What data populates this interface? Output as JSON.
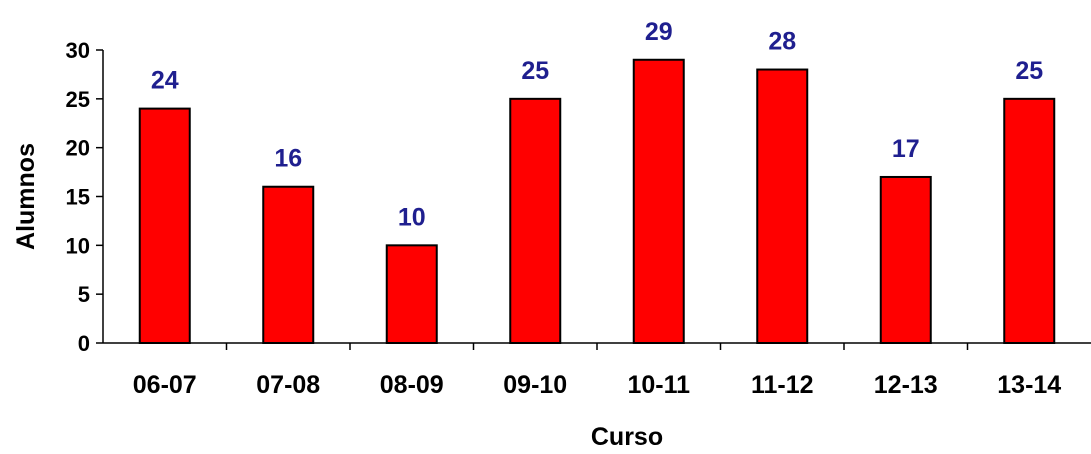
{
  "chart_data": {
    "type": "bar",
    "title": "",
    "xlabel": "Curso",
    "ylabel": "Alumnos",
    "categories": [
      "06-07",
      "07-08",
      "08-09",
      "09-10",
      "10-11",
      "11-12",
      "12-13",
      "13-14"
    ],
    "values": [
      24,
      16,
      10,
      25,
      29,
      28,
      17,
      25
    ],
    "ylim": [
      0,
      30
    ],
    "yticks": [
      "0",
      "5",
      "10",
      "15",
      "20",
      "25",
      "30"
    ],
    "data_labels": [
      "24",
      "16",
      "10",
      "25",
      "29",
      "28",
      "17",
      "25"
    ],
    "grid": false,
    "legend": "none",
    "colors": {
      "bar_fill": "#ff0000",
      "bar_stroke": "#000000",
      "data_label": "#1f1f8f",
      "axis": "#000000"
    }
  }
}
